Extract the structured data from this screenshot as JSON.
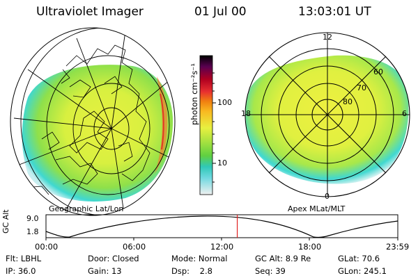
{
  "header": {
    "title": "Ultraviolet Imager",
    "date": "01 Jul 00",
    "time": "13:03:01 UT"
  },
  "colorbar": {
    "unit_label": "photon cm⁻²s⁻¹",
    "tick_100": "100",
    "tick_10": "10"
  },
  "left_map": {
    "label": "Geographic Lat/Lon"
  },
  "right_map": {
    "label": "Apex MLat/MLT",
    "mlt_labels": {
      "top": "12",
      "left": "18",
      "right": "6",
      "bottom": "0"
    },
    "lat_labels": [
      "60",
      "70",
      "80"
    ]
  },
  "alt_plot": {
    "ylabel": "GC Alt",
    "ymax": "9.0",
    "ymin": "1.8",
    "x_ticks": [
      "00:00",
      "06:00",
      "12:00",
      "18:00",
      "23:59"
    ],
    "current_time_fraction": 0.5437
  },
  "info": {
    "row1": [
      {
        "label": "Flt:",
        "value": "LBHL"
      },
      {
        "label": "Door:",
        "value": "Closed"
      },
      {
        "label": "Mode:",
        "value": "Normal"
      },
      {
        "label": "GC Alt:",
        "value": "8.9 Re"
      },
      {
        "label": "GLat:",
        "value": "70.6"
      }
    ],
    "row2": [
      {
        "label": "IP:",
        "value": "36.0"
      },
      {
        "label": "Gain:",
        "value": "13"
      },
      {
        "label": "Dsp:",
        "value": "2.8"
      },
      {
        "label": "Seq:",
        "value": "39"
      },
      {
        "label": "GLon:",
        "value": "245.1"
      }
    ]
  },
  "colors": {
    "aurora_green": "#8fe04a",
    "aurora_yellow": "#e8f040",
    "aurora_cyan": "#40d8d0",
    "marker_red": "#e02020"
  }
}
